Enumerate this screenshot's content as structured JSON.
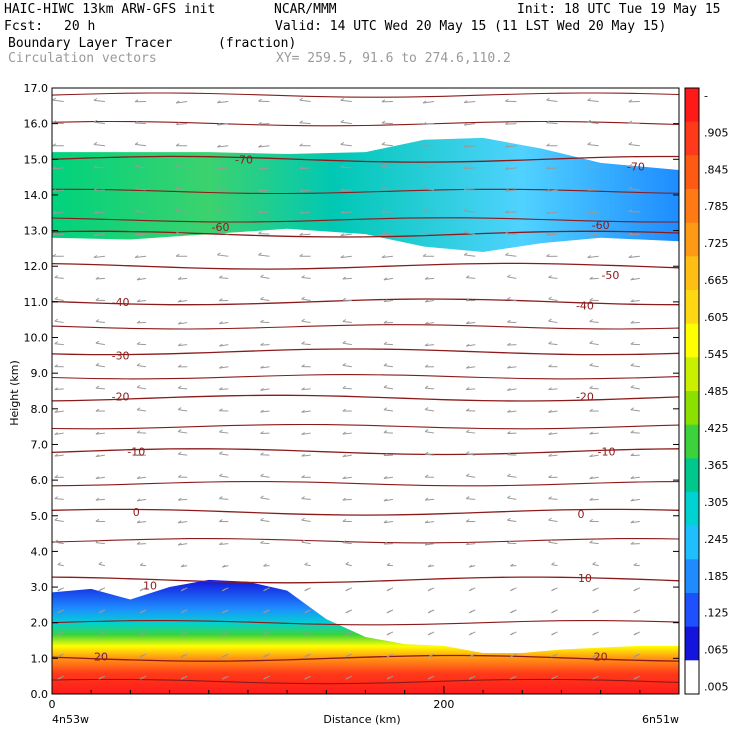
{
  "header": {
    "model": "HAIC-HIWC 13km ARW-GFS init",
    "org": "NCAR/MMM",
    "init": "Init: 18 UTC Tue 19 May 15",
    "fcst_label": "Fcst:",
    "fcst_value": "20 h",
    "valid": "Valid: 14 UTC Wed 20 May 15 (11 LST Wed 20 May 15)",
    "field": "Boundary Layer Tracer",
    "field_units": "(fraction)",
    "overlay": "Circulation vectors",
    "xy": "XY= 259.5, 91.6 to 274.6,110.2"
  },
  "axes": {
    "xlabel": "Distance (km)",
    "ylabel": "Height (km)",
    "left_endpoint": "4n53w",
    "right_endpoint": "6n51w"
  },
  "chart_data": {
    "type": "heatmap",
    "title": "Boundary Layer Tracer",
    "xlabel": "Distance (km)",
    "ylabel": "Height (km)",
    "xlim": [
      0,
      320
    ],
    "ylim": [
      0,
      17
    ],
    "x_ticks": [
      {
        "value": 0,
        "label": "0"
      },
      {
        "value": 200,
        "label": "200"
      }
    ],
    "y_ticks": [
      "0.0",
      "1.0",
      "2.0",
      "3.0",
      "4.0",
      "5.0",
      "6.0",
      "7.0",
      "8.0",
      "9.0",
      "10.0",
      "11.0",
      "12.0",
      "13.0",
      "14.0",
      "15.0",
      "16.0",
      "17.0"
    ],
    "colorbar": {
      "labels": [
        "-",
        ".905",
        ".845",
        ".785",
        ".725",
        ".665",
        ".605",
        ".545",
        ".485",
        ".425",
        ".365",
        ".305",
        ".245",
        ".185",
        ".125",
        ".065",
        ".005"
      ],
      "colors": [
        "#ff1a1a",
        "#ff3a1a",
        "#ff5a14",
        "#ff7a14",
        "#ff9a14",
        "#ffbe14",
        "#ffd814",
        "#ffff00",
        "#c8f000",
        "#8ce000",
        "#3cd23c",
        "#00c88c",
        "#00d2d2",
        "#1ebeff",
        "#1e8cff",
        "#1e50ff",
        "#1414dc",
        "#ffffff"
      ]
    },
    "tracer_upper_layer": {
      "x_km": [
        0,
        40,
        80,
        120,
        160,
        190,
        220,
        250,
        280,
        320
      ],
      "bottom_km": [
        12.8,
        12.75,
        12.9,
        13.05,
        12.9,
        12.55,
        12.4,
        12.65,
        12.8,
        12.7
      ],
      "top_km": [
        15.2,
        15.2,
        15.2,
        15.15,
        15.2,
        15.55,
        15.6,
        15.3,
        14.9,
        14.7
      ],
      "core_max_fraction": 0.3
    },
    "tracer_boundary_layer": {
      "x_km": [
        0,
        20,
        40,
        60,
        80,
        100,
        120,
        140,
        160,
        180,
        200,
        220,
        240,
        260,
        280,
        300,
        320
      ],
      "top_km": [
        2.85,
        2.95,
        2.65,
        3.0,
        3.2,
        3.15,
        2.9,
        2.1,
        1.6,
        1.4,
        1.35,
        1.15,
        1.15,
        1.25,
        1.3,
        1.35,
        1.35
      ],
      "surface_max_fraction": 0.95
    },
    "temperature_contours": [
      {
        "label": "-70",
        "height_km": 15.0
      },
      {
        "label": "-60",
        "height_km": 12.9
      },
      {
        "label": "-50",
        "height_km": 12.0
      },
      {
        "label": "-40",
        "height_km": 11.0
      },
      {
        "label": "-30",
        "height_km": 9.6
      },
      {
        "label": "-20",
        "height_km": 8.3
      },
      {
        "label": "-10",
        "height_km": 6.8
      },
      {
        "label": "0",
        "height_km": 5.1
      },
      {
        "label": "10",
        "height_km": 3.2
      },
      {
        "label": "20",
        "height_km": 1.0
      }
    ],
    "contour_label_positions": [
      {
        "label": "-70",
        "x_km": 98,
        "y_km": 15.0
      },
      {
        "label": "-70",
        "x_km": 298,
        "y_km": 14.8
      },
      {
        "label": "-60",
        "x_km": 86,
        "y_km": 13.1
      },
      {
        "label": "-60",
        "x_km": 280,
        "y_km": 13.15
      },
      {
        "label": "-50",
        "x_km": 285,
        "y_km": 11.75
      },
      {
        "label": "-40",
        "x_km": 35,
        "y_km": 11.0
      },
      {
        "label": "-40",
        "x_km": 272,
        "y_km": 10.9
      },
      {
        "label": "-30",
        "x_km": 35,
        "y_km": 9.5
      },
      {
        "label": "-20",
        "x_km": 35,
        "y_km": 8.35
      },
      {
        "label": "-20",
        "x_km": 272,
        "y_km": 8.35
      },
      {
        "label": "-10",
        "x_km": 43,
        "y_km": 6.8
      },
      {
        "label": "-10",
        "x_km": 283,
        "y_km": 6.8
      },
      {
        "label": "0",
        "x_km": 43,
        "y_km": 5.1
      },
      {
        "label": "0",
        "x_km": 270,
        "y_km": 5.05
      },
      {
        "label": "10",
        "x_km": 50,
        "y_km": 3.05
      },
      {
        "label": "10",
        "x_km": 272,
        "y_km": 3.25
      },
      {
        "label": "20",
        "x_km": 25,
        "y_km": 1.05
      },
      {
        "label": "20",
        "x_km": 280,
        "y_km": 1.05
      }
    ],
    "circulation_vectors": "westward (right-to-left) flow aloft, weak descent near surface",
    "grid": false,
    "legend": "colorbar right"
  }
}
